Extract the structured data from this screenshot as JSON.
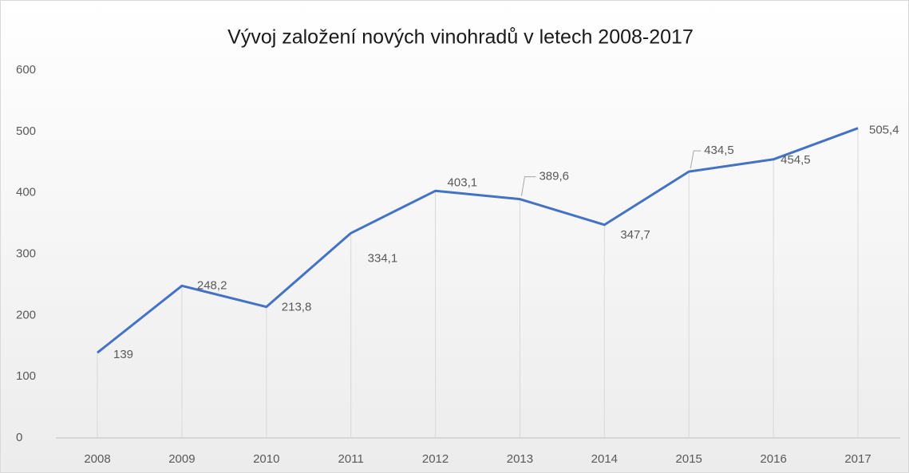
{
  "chart_data": {
    "type": "line",
    "title": "Vývoj založení nových vinohradů v letech 2008-2017",
    "categories": [
      "2008",
      "2009",
      "2010",
      "2011",
      "2012",
      "2013",
      "2014",
      "2015",
      "2016",
      "2017"
    ],
    "series": [
      {
        "color": "#4472c4",
        "values": [
          139,
          248.2,
          213.8,
          334.1,
          403.1,
          389.6,
          347.7,
          434.5,
          454.5,
          505.4
        ],
        "value_labels": [
          "139",
          "248,2",
          "213,8",
          "334,1",
          "403,1",
          "389,6",
          "347,7",
          "434,5",
          "454,5",
          "505,4"
        ]
      }
    ],
    "ylim": [
      0,
      600
    ],
    "yticks": [
      0,
      100,
      200,
      300,
      400,
      500,
      600
    ],
    "grid": false,
    "drop_lines": true
  }
}
